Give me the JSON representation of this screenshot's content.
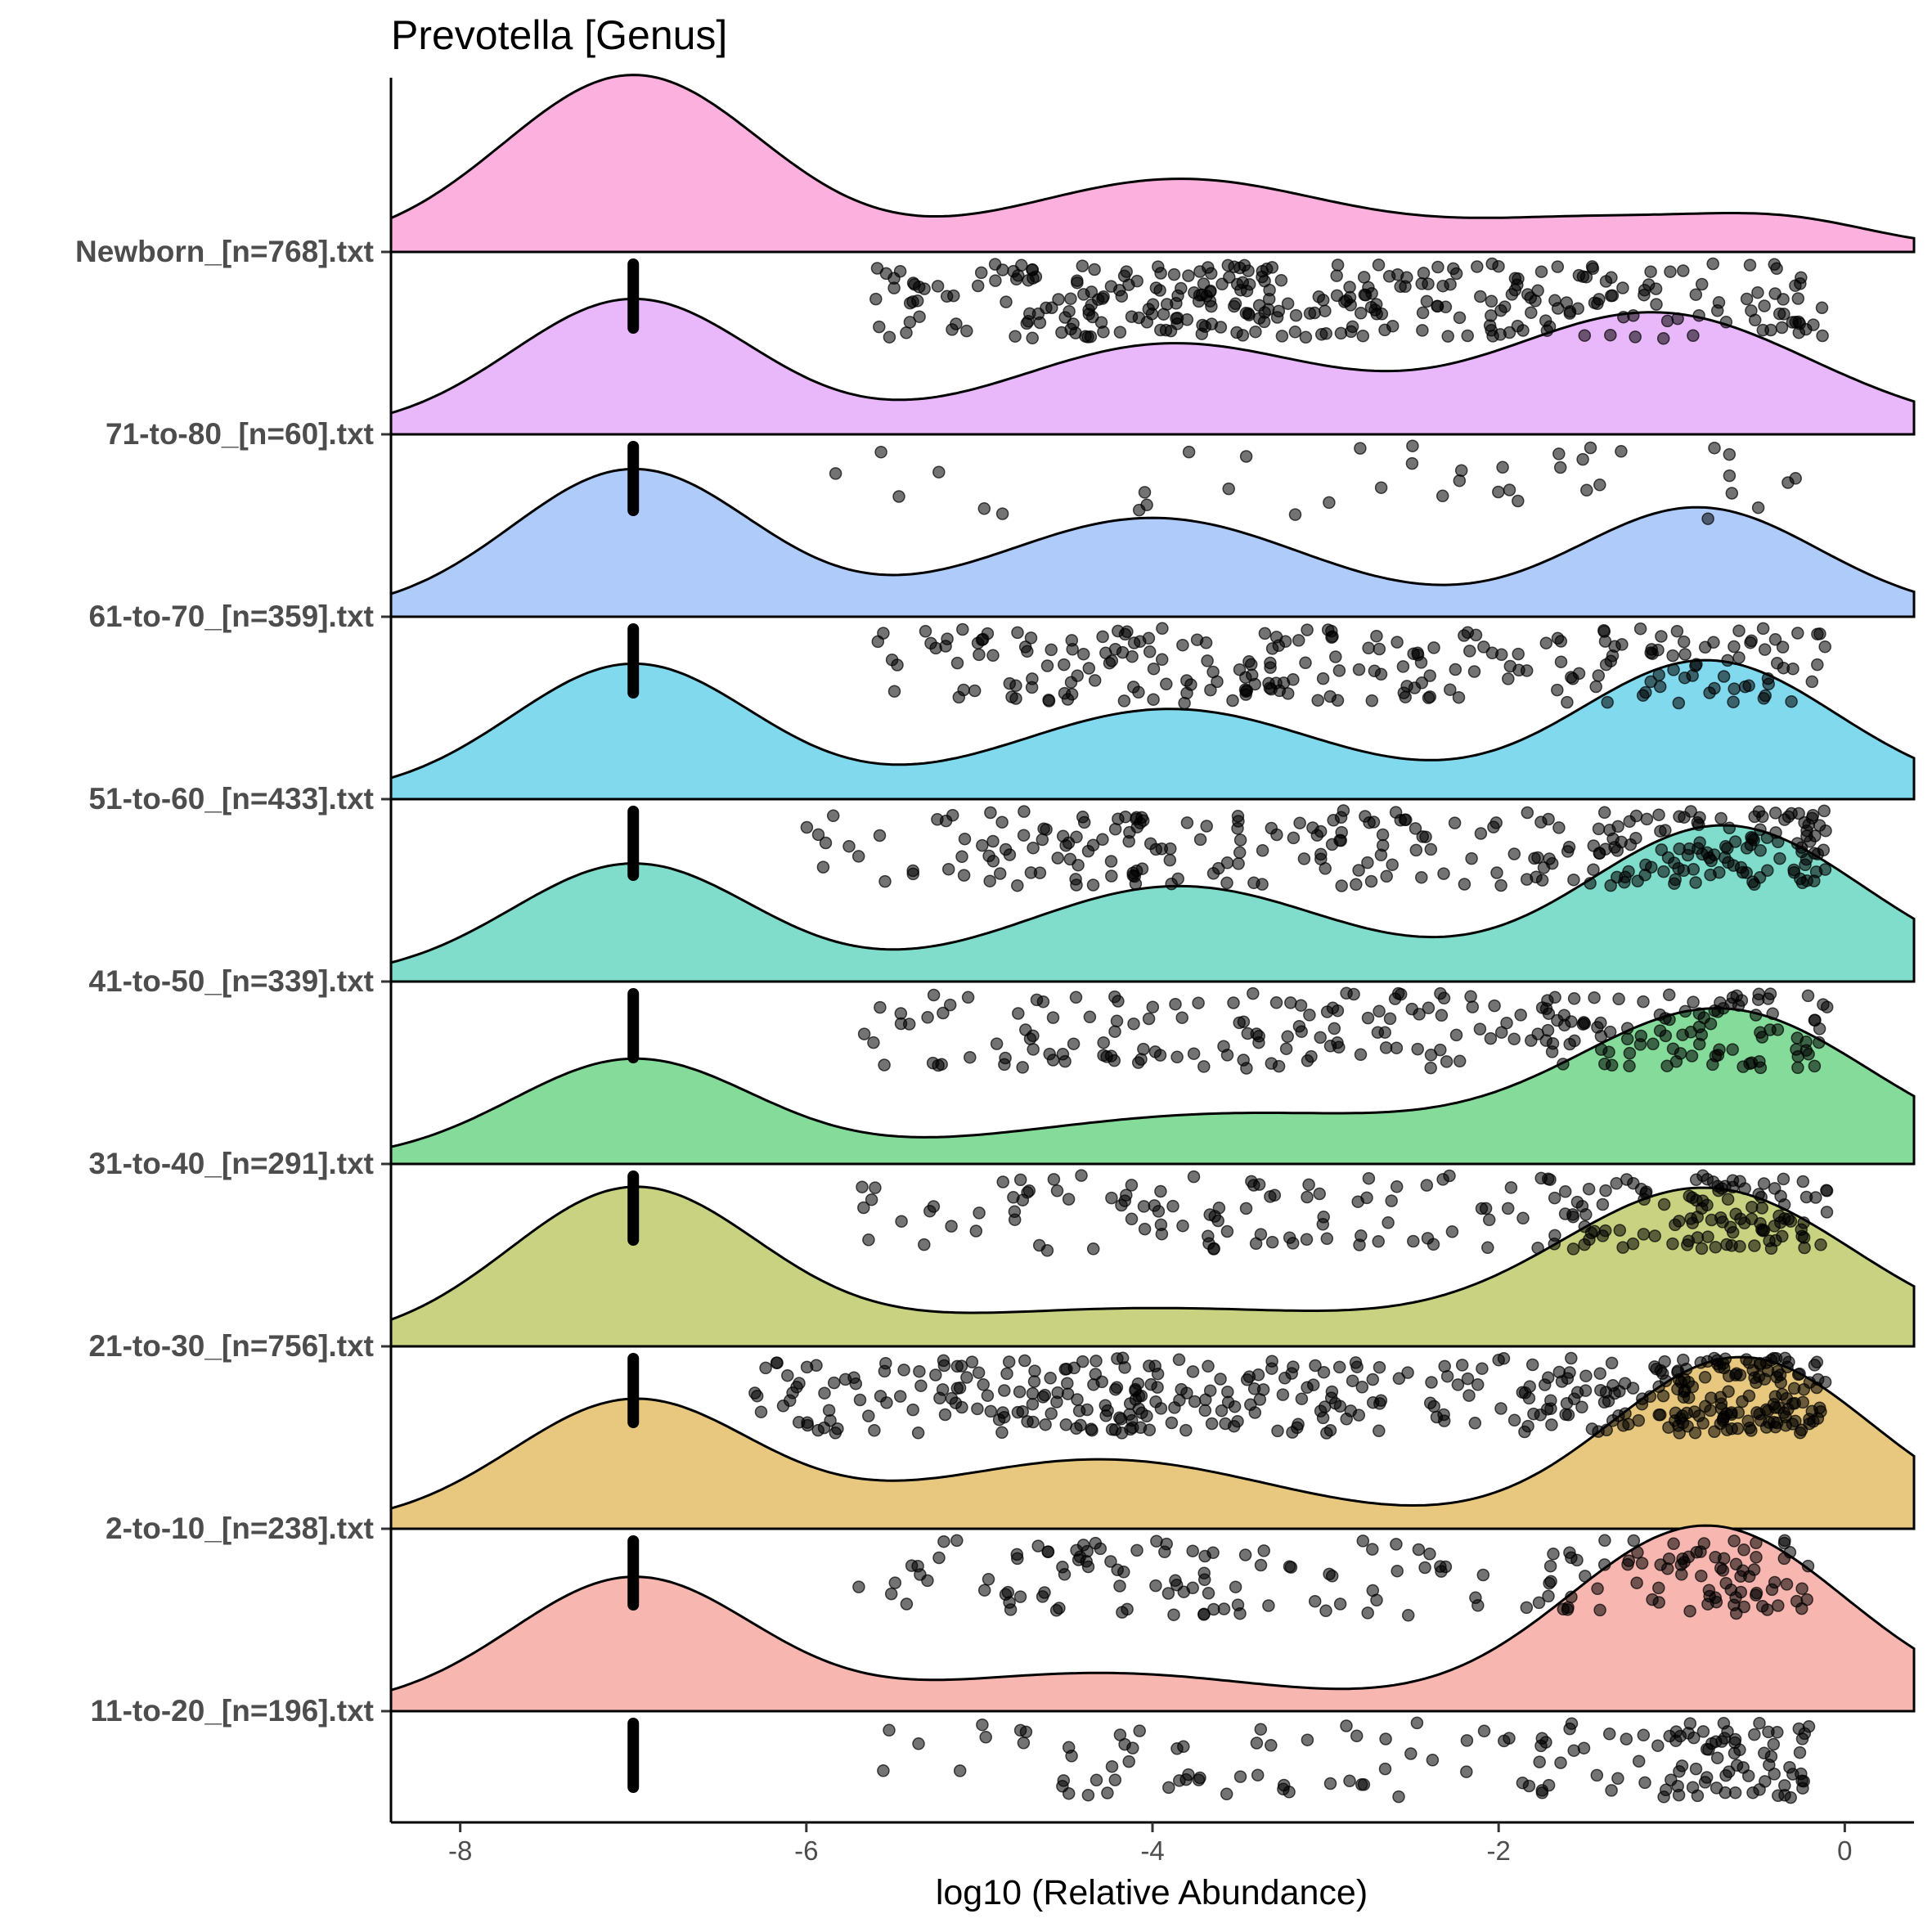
{
  "chart_data": {
    "type": "raincloud (density ridgeline + jittered points)",
    "title": "Prevotella [Genus]",
    "xlabel": "log10 (Relative Abundance)",
    "ylabel": "",
    "xlim": [
      -8.4,
      0.4
    ],
    "xticks": [
      -8,
      -6,
      -4,
      -2,
      0
    ],
    "xtick_labels": [
      "-8",
      "-6",
      "-4",
      "-2",
      "0"
    ],
    "zero_abundance_position": -7,
    "grid": false,
    "legend": "none",
    "categories": [
      "Newborn_[n=768].txt",
      "71-to-80_[n=60].txt",
      "61-to-70_[n=359].txt",
      "51-to-60_[n=433].txt",
      "41-to-50_[n=339].txt",
      "31-to-40_[n=291].txt",
      "21-to-30_[n=756].txt",
      "2-to-10_[n=238].txt",
      "11-to-20_[n=196].txt"
    ],
    "series": [
      {
        "name": "Newborn_[n=768].txt",
        "n": 768,
        "color": "#FBB0DE",
        "density_peaks": [
          {
            "center": -7.0,
            "height": 1.0,
            "width": 0.75
          },
          {
            "center": -3.85,
            "height": 0.4,
            "width": 0.9
          },
          {
            "center": -1.4,
            "height": 0.17,
            "width": 0.8
          },
          {
            "center": -0.3,
            "height": 0.12,
            "width": 0.5
          }
        ],
        "points_range": [
          -5.6,
          -0.1
        ],
        "points_count": 320,
        "points_weights": [
          0.1,
          0.18,
          0.22,
          0.18,
          0.12,
          0.1,
          0.1
        ]
      },
      {
        "name": "71-to-80_[n=60].txt",
        "n": 60,
        "color": "#E8B8FA",
        "density_peaks": [
          {
            "center": -7.0,
            "height": 0.76,
            "width": 0.7
          },
          {
            "center": -3.9,
            "height": 0.5,
            "width": 0.9
          },
          {
            "center": -1.1,
            "height": 0.68,
            "width": 0.9
          }
        ],
        "points_range": [
          -6.0,
          -0.2
        ],
        "points_count": 40,
        "points_weights": [
          0.08,
          0.12,
          0.15,
          0.12,
          0.18,
          0.18,
          0.17
        ]
      },
      {
        "name": "61-to-70_[n=359].txt",
        "n": 359,
        "color": "#AECBFA",
        "density_peaks": [
          {
            "center": -7.0,
            "height": 0.83,
            "width": 0.7
          },
          {
            "center": -4.0,
            "height": 0.55,
            "width": 0.9
          },
          {
            "center": -0.85,
            "height": 0.61,
            "width": 0.7
          }
        ],
        "points_range": [
          -5.6,
          -0.1
        ],
        "points_count": 230,
        "points_weights": [
          0.1,
          0.15,
          0.18,
          0.14,
          0.12,
          0.14,
          0.17
        ]
      },
      {
        "name": "51-to-60_[n=433].txt",
        "n": 433,
        "color": "#81D9EE",
        "density_peaks": [
          {
            "center": -7.0,
            "height": 0.76,
            "width": 0.7
          },
          {
            "center": -3.9,
            "height": 0.5,
            "width": 0.9
          },
          {
            "center": -0.8,
            "height": 0.78,
            "width": 0.75
          }
        ],
        "points_range": [
          -6.0,
          -0.1
        ],
        "points_count": 280,
        "points_weights": [
          0.07,
          0.12,
          0.16,
          0.13,
          0.1,
          0.17,
          0.25
        ]
      },
      {
        "name": "41-to-50_[n=339].txt",
        "n": 339,
        "color": "#80DDCC",
        "density_peaks": [
          {
            "center": -7.0,
            "height": 0.66,
            "width": 0.7
          },
          {
            "center": -3.85,
            "height": 0.53,
            "width": 0.9
          },
          {
            "center": -0.7,
            "height": 0.88,
            "width": 0.8
          }
        ],
        "points_range": [
          -5.8,
          -0.1
        ],
        "points_count": 230,
        "points_weights": [
          0.07,
          0.12,
          0.15,
          0.12,
          0.1,
          0.18,
          0.26
        ]
      },
      {
        "name": "31-to-40_[n=291].txt",
        "n": 291,
        "color": "#84DB9A",
        "density_peaks": [
          {
            "center": -7.0,
            "height": 0.58,
            "width": 0.7
          },
          {
            "center": -3.5,
            "height": 0.27,
            "width": 1.3
          },
          {
            "center": -0.7,
            "height": 0.85,
            "width": 0.85
          }
        ],
        "points_range": [
          -5.7,
          -0.1
        ],
        "points_count": 210,
        "points_weights": [
          0.06,
          0.1,
          0.13,
          0.1,
          0.09,
          0.2,
          0.32
        ]
      },
      {
        "name": "21-to-30_[n=756].txt",
        "n": 756,
        "color": "#C8D280",
        "density_peaks": [
          {
            "center": -7.0,
            "height": 0.88,
            "width": 0.72
          },
          {
            "center": -4.0,
            "height": 0.2,
            "width": 1.4
          },
          {
            "center": -0.8,
            "height": 0.88,
            "width": 0.85
          }
        ],
        "points_range": [
          -6.3,
          -0.1
        ],
        "points_count": 420,
        "points_weights": [
          0.06,
          0.12,
          0.15,
          0.12,
          0.08,
          0.17,
          0.3
        ]
      },
      {
        "name": "2-to-10_[n=238].txt",
        "n": 238,
        "color": "#E8C87E",
        "density_peaks": [
          {
            "center": -7.0,
            "height": 0.72,
            "width": 0.7
          },
          {
            "center": -4.3,
            "height": 0.38,
            "width": 1.0
          },
          {
            "center": -0.6,
            "height": 0.97,
            "width": 0.75
          }
        ],
        "points_range": [
          -5.7,
          -0.2
        ],
        "points_count": 180,
        "points_weights": [
          0.06,
          0.14,
          0.14,
          0.1,
          0.08,
          0.16,
          0.32
        ]
      },
      {
        "name": "11-to-20_[n=196].txt",
        "n": 196,
        "color": "#F8B6B0",
        "density_peaks": [
          {
            "center": -7.0,
            "height": 0.75,
            "width": 0.7
          },
          {
            "center": -4.3,
            "height": 0.2,
            "width": 1.0
          },
          {
            "center": -0.8,
            "height": 1.05,
            "width": 0.8
          }
        ],
        "points_range": [
          -5.7,
          -0.2
        ],
        "points_count": 150,
        "points_weights": [
          0.05,
          0.1,
          0.1,
          0.08,
          0.07,
          0.2,
          0.4
        ]
      }
    ]
  }
}
